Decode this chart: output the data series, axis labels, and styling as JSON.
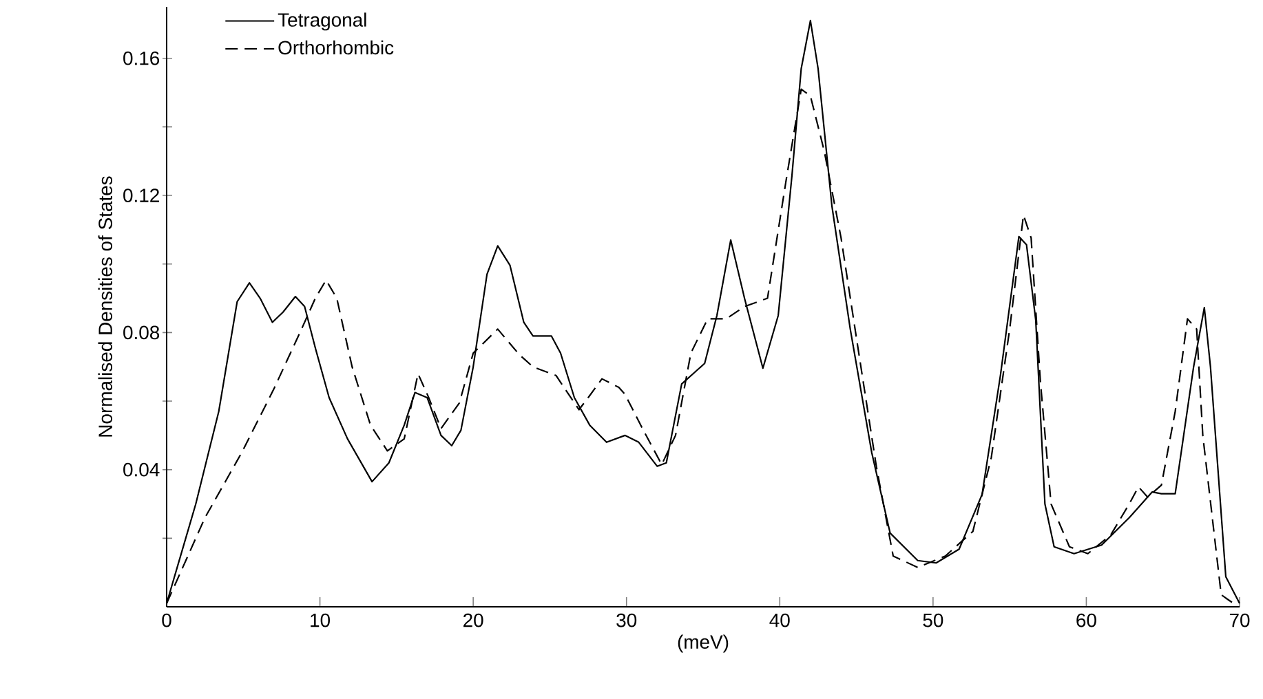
{
  "chart_data": {
    "type": "line",
    "xlabel": "(meV)",
    "ylabel": "Normalised Densities of States",
    "xlim": [
      0,
      70
    ],
    "ylim": [
      0,
      0.175
    ],
    "xticks": [
      0,
      10,
      20,
      30,
      40,
      50,
      60,
      70
    ],
    "yticks": [
      {
        "value": 0.02,
        "label": null
      },
      0.04,
      {
        "value": 0.06,
        "label": null
      },
      0.08,
      {
        "value": 0.1,
        "label": null
      },
      0.12,
      {
        "value": 0.14,
        "label": null
      },
      0.16
    ],
    "legend": "top left",
    "series": [
      {
        "name": "Tetragonal",
        "color": "#000000",
        "line_style": "solid",
        "x": [
          0,
          1.9,
          3.4,
          4.0,
          4.6,
          5.4,
          6.1,
          6.9,
          7.6,
          8.4,
          9.0,
          9.7,
          10.6,
          11.8,
          13.4,
          14.5,
          15.5,
          16.2,
          17.0,
          17.9,
          18.6,
          19.2,
          20.0,
          20.9,
          21.6,
          22.4,
          23.3,
          23.9,
          25.1,
          25.7,
          26.6,
          27.6,
          28.7,
          29.9,
          30.8,
          32.0,
          32.6,
          33.6,
          35.1,
          35.9,
          36.8,
          37.7,
          38.9,
          39.9,
          40.8,
          41.4,
          42.0,
          42.5,
          43.4,
          44.6,
          46.0,
          47.2,
          49.0,
          50.2,
          51.7,
          53.2,
          54.4,
          55.6,
          56.1,
          56.7,
          57.3,
          57.9,
          59.2,
          61.0,
          62.8,
          64.3,
          64.9,
          65.8,
          67.0,
          67.7,
          68.1,
          69.1,
          70.0
        ],
        "values": [
          0.001,
          0.03,
          0.057,
          0.073,
          0.089,
          0.0945,
          0.09,
          0.083,
          0.086,
          0.0905,
          0.0876,
          0.0755,
          0.061,
          0.049,
          0.0365,
          0.042,
          0.053,
          0.0625,
          0.061,
          0.05,
          0.047,
          0.0515,
          0.07,
          0.097,
          0.1053,
          0.0996,
          0.083,
          0.079,
          0.079,
          0.074,
          0.061,
          0.053,
          0.048,
          0.05,
          0.048,
          0.041,
          0.042,
          0.065,
          0.071,
          0.085,
          0.107,
          0.09,
          0.0696,
          0.085,
          0.126,
          0.157,
          0.171,
          0.157,
          0.117,
          0.081,
          0.045,
          0.0215,
          0.0135,
          0.0128,
          0.0168,
          0.0328,
          0.0676,
          0.108,
          0.1056,
          0.0836,
          0.03,
          0.0175,
          0.0155,
          0.018,
          0.026,
          0.0335,
          0.033,
          0.033,
          0.07,
          0.0873,
          0.07,
          0.0088,
          0.001
        ]
      },
      {
        "name": "Orthorhombic",
        "color": "#000000",
        "line_style": "dashed",
        "x": [
          0,
          2.5,
          4.9,
          7.0,
          8.8,
          9.7,
          10.4,
          11.1,
          12.1,
          13.3,
          14.4,
          15.5,
          16.4,
          17.1,
          17.9,
          19.1,
          20.0,
          21.6,
          23.0,
          23.9,
          25.4,
          26.9,
          27.5,
          28.4,
          29.5,
          29.9,
          31.1,
          32.3,
          33.2,
          34.2,
          35.3,
          36.5,
          37.7,
          39.2,
          40.4,
          41.4,
          42.0,
          42.9,
          44.0,
          45.1,
          46.3,
          47.4,
          49.0,
          50.8,
          52.6,
          53.8,
          55.0,
          55.9,
          56.4,
          57.0,
          57.7,
          58.9,
          60.1,
          61.6,
          62.8,
          63.4,
          64.0,
          64.9,
          65.8,
          66.6,
          67.2,
          67.6,
          68.8,
          69.6
        ],
        "values": [
          0.001,
          0.026,
          0.045,
          0.0636,
          0.081,
          0.09,
          0.0953,
          0.09,
          0.07,
          0.053,
          0.0455,
          0.049,
          0.068,
          0.061,
          0.052,
          0.0595,
          0.074,
          0.081,
          0.0736,
          0.07,
          0.0675,
          0.0575,
          0.061,
          0.0665,
          0.064,
          0.062,
          0.0515,
          0.0415,
          0.05,
          0.074,
          0.084,
          0.084,
          0.0876,
          0.09,
          0.124,
          0.151,
          0.149,
          0.133,
          0.1076,
          0.0756,
          0.041,
          0.0148,
          0.0115,
          0.0148,
          0.022,
          0.0435,
          0.081,
          0.1143,
          0.1076,
          0.066,
          0.03,
          0.0175,
          0.0155,
          0.021,
          0.03,
          0.035,
          0.032,
          0.0355,
          0.057,
          0.084,
          0.081,
          0.05,
          0.0035,
          0.001
        ]
      }
    ]
  }
}
